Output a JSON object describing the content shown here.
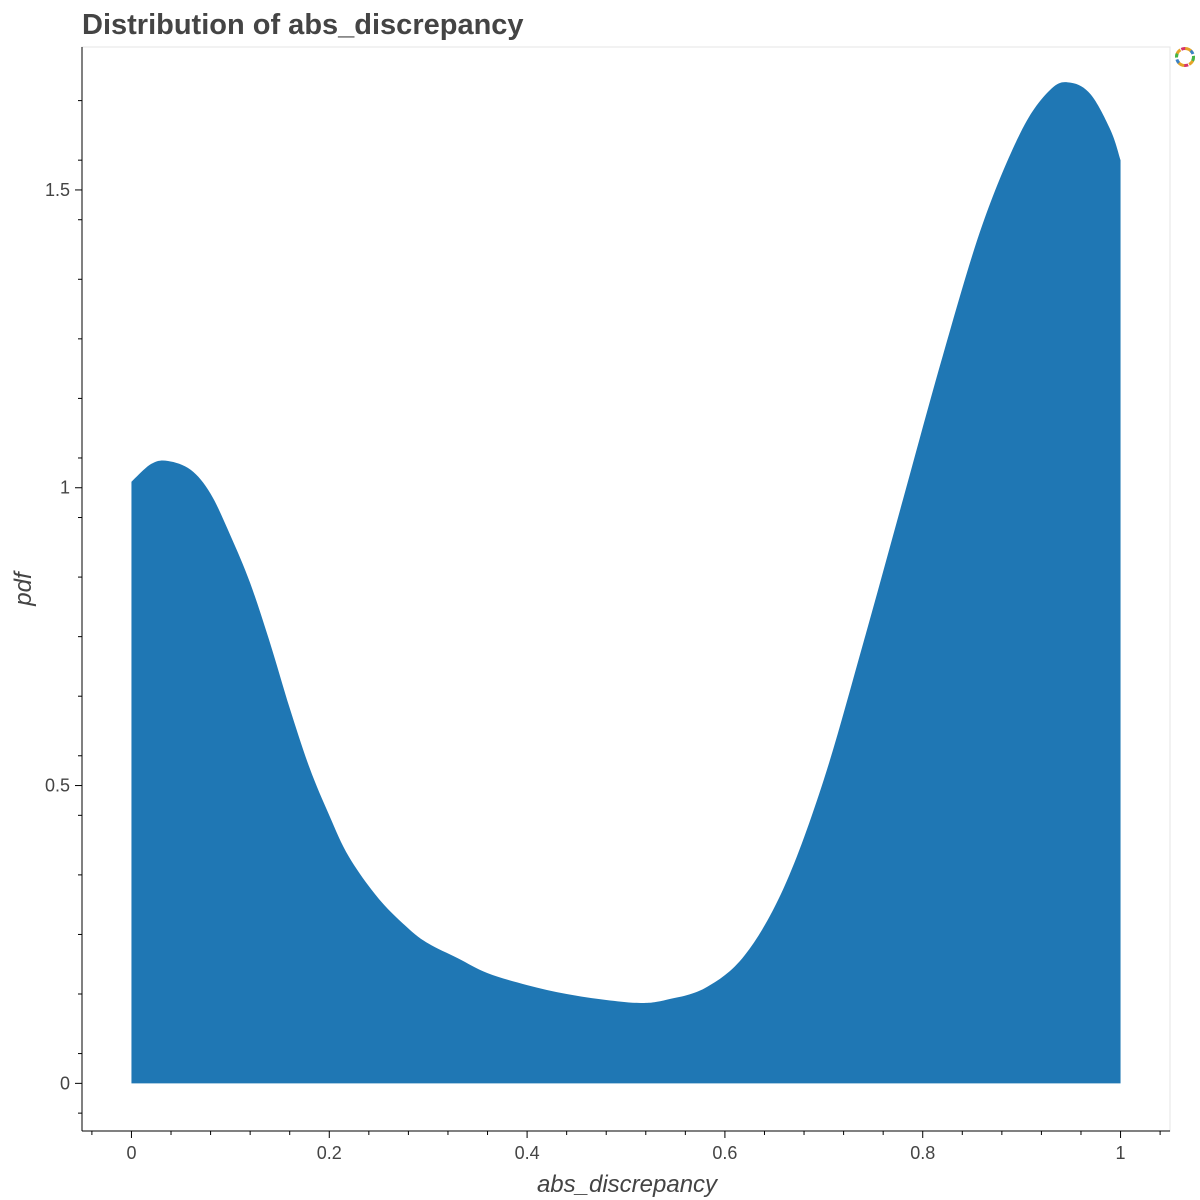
{
  "chart_data": {
    "type": "area",
    "title": "Distribution of abs_discrepancy",
    "xlabel": "abs_discrepancy",
    "ylabel": "pdf",
    "xlim": [
      -0.05,
      1.05
    ],
    "ylim": [
      -0.08,
      1.74
    ],
    "x_ticks": [
      0,
      0.2,
      0.4,
      0.6,
      0.8,
      1
    ],
    "x_tick_labels": [
      "0",
      "0.2",
      "0.4",
      "0.6",
      "0.8",
      "1"
    ],
    "y_ticks": [
      0,
      0.5,
      1,
      1.5
    ],
    "y_tick_labels": [
      "0",
      "0.5",
      "1",
      "1.5"
    ],
    "grid": false,
    "fill_color": "#1f77b4",
    "series": [
      {
        "x": [
          0,
          0.02,
          0.037,
          0.06,
          0.08,
          0.1,
          0.12,
          0.14,
          0.16,
          0.18,
          0.2,
          0.22,
          0.25,
          0.28,
          0.3,
          0.33,
          0.36,
          0.4,
          0.44,
          0.48,
          0.515,
          0.54,
          0.58,
          0.62,
          0.66,
          0.7,
          0.74,
          0.78,
          0.82,
          0.86,
          0.9,
          0.93,
          0.95,
          0.97,
          0.99,
          1.0
        ],
        "y": [
          1.01,
          1.04,
          1.045,
          1.03,
          0.99,
          0.92,
          0.84,
          0.74,
          0.63,
          0.53,
          0.45,
          0.38,
          0.31,
          0.26,
          0.235,
          0.21,
          0.185,
          0.165,
          0.15,
          0.14,
          0.135,
          0.14,
          0.16,
          0.215,
          0.33,
          0.51,
          0.74,
          0.98,
          1.22,
          1.44,
          1.6,
          1.67,
          1.68,
          1.66,
          1.6,
          1.55
        ]
      }
    ]
  },
  "toolbar": {
    "logo_icon": "bokeh-logo-icon"
  }
}
